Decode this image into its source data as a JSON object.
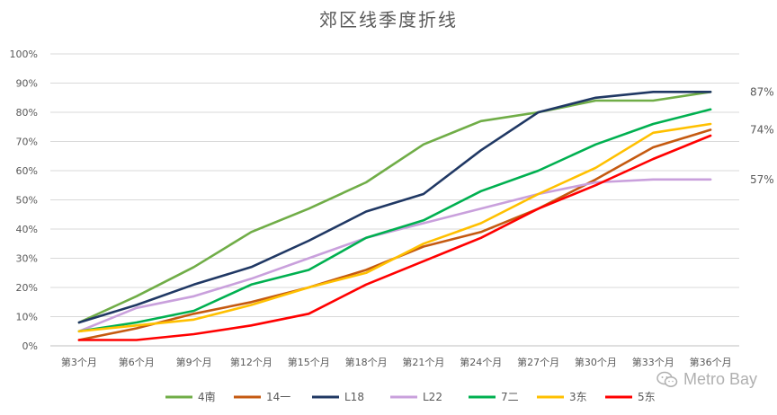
{
  "chart_data": {
    "type": "line",
    "title": "郊区线季度折线",
    "xlabel": "",
    "ylabel": "",
    "categories": [
      "第3个月",
      "第6个月",
      "第9个月",
      "第12个月",
      "第15个月",
      "第18个月",
      "第21个月",
      "第24个月",
      "第27个月",
      "第30个月",
      "第33个月",
      "第36个月"
    ],
    "yticks": [
      "0%",
      "10%",
      "20%",
      "30%",
      "40%",
      "50%",
      "60%",
      "70%",
      "80%",
      "90%",
      "100%"
    ],
    "ylim": [
      0,
      100
    ],
    "grid": true,
    "legend_position": "bottom",
    "series": [
      {
        "name": "4南",
        "color": "#70AD47",
        "values": [
          8,
          17,
          27,
          39,
          47,
          56,
          69,
          77,
          80,
          84,
          84,
          87
        ]
      },
      {
        "name": "14一",
        "color": "#C55A11",
        "values": [
          2,
          6,
          11,
          15,
          20,
          26,
          34,
          39,
          47,
          57,
          68,
          74
        ]
      },
      {
        "name": "L18",
        "color": "#203864",
        "values": [
          8,
          14,
          21,
          27,
          36,
          46,
          52,
          67,
          80,
          85,
          87,
          87
        ]
      },
      {
        "name": "L22",
        "color": "#C9A0DC",
        "values": [
          5,
          13,
          17,
          23,
          30,
          37,
          42,
          47,
          52,
          56,
          57,
          57
        ]
      },
      {
        "name": "7二",
        "color": "#00B050",
        "values": [
          5,
          8,
          12,
          21,
          26,
          37,
          43,
          53,
          60,
          69,
          76,
          81
        ]
      },
      {
        "name": "3东",
        "color": "#FFC000",
        "values": [
          5,
          7,
          9,
          14,
          20,
          25,
          35,
          42,
          52,
          61,
          73,
          76
        ]
      },
      {
        "name": "5东",
        "color": "#FF0000",
        "values": [
          2,
          2,
          4,
          7,
          11,
          21,
          29,
          37,
          47,
          55,
          64,
          72
        ]
      }
    ],
    "annotations": [
      "87%",
      "74%",
      "57%"
    ]
  },
  "watermark": {
    "text": "Metro Bay",
    "icon": "wechat-icon"
  }
}
